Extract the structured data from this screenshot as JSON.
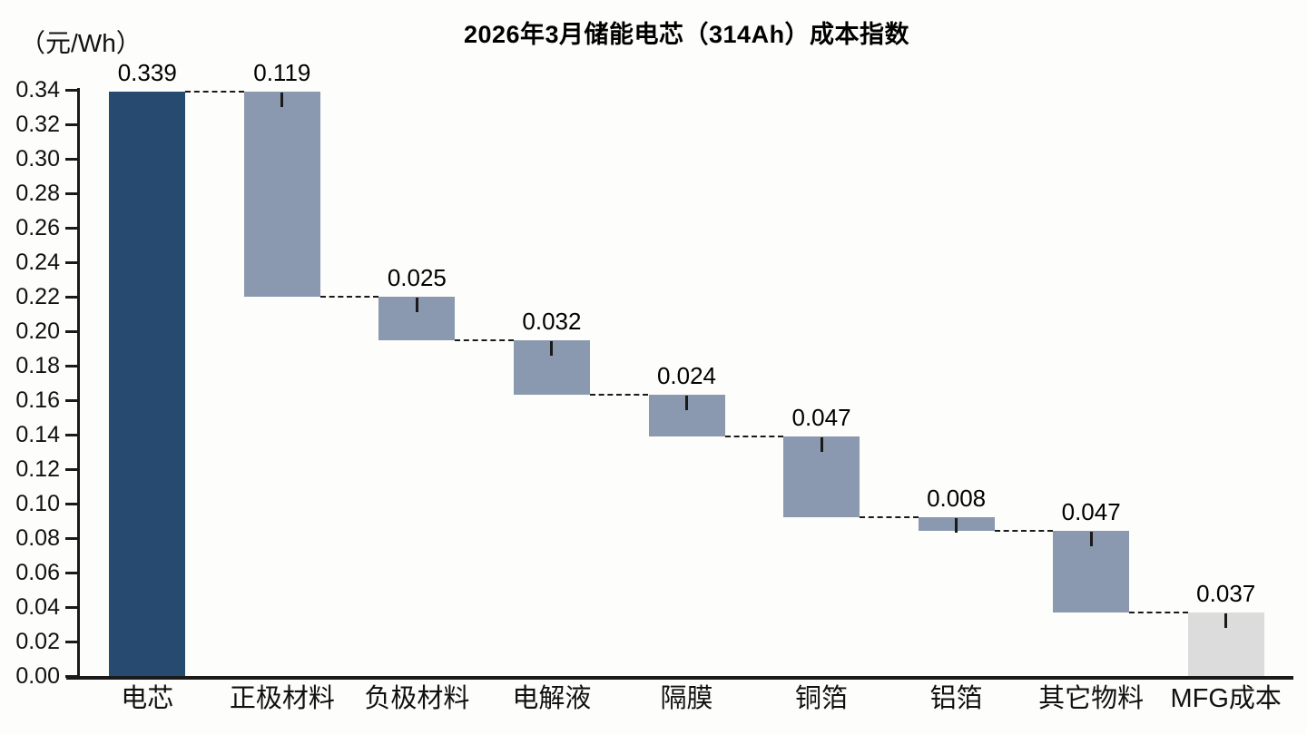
{
  "page": {
    "background": "#fdfdfb"
  },
  "chart_data": {
    "type": "bar",
    "subtype": "waterfall",
    "title": "2026年3月储能电芯（314Ah）成本指数",
    "y_unit_label": "（元/Wh）",
    "categories": [
      "电芯",
      "正极材料",
      "负极材料",
      "电解液",
      "隔膜",
      "铜箔",
      "铝箔",
      "其它物料",
      "MFG成本"
    ],
    "values": [
      0.339,
      0.119,
      0.025,
      0.032,
      0.024,
      0.047,
      0.008,
      0.047,
      0.037
    ],
    "value_labels": [
      "0.339",
      "0.119",
      "0.025",
      "0.032",
      "0.024",
      "0.047",
      "0.008",
      "0.047",
      "0.037"
    ],
    "bar_roles": [
      "total",
      "component",
      "component",
      "component",
      "component",
      "component",
      "component",
      "component",
      "final"
    ],
    "running_levels": [
      0.339,
      0.22,
      0.195,
      0.163,
      0.139,
      0.092,
      0.084,
      0.037,
      0.0
    ],
    "ylim": [
      0,
      0.34
    ],
    "ytick_step": 0.02,
    "ytick_decimals": 2,
    "grid": false,
    "legend": "none",
    "connector_style": "dashed",
    "colors": {
      "total_bar": "#264a70",
      "component_bar": "#8a99af",
      "final_bar": "#dcdcdc",
      "axis": "#1a1a1a",
      "connector": "#1a1a1a",
      "text": "#000000"
    }
  }
}
